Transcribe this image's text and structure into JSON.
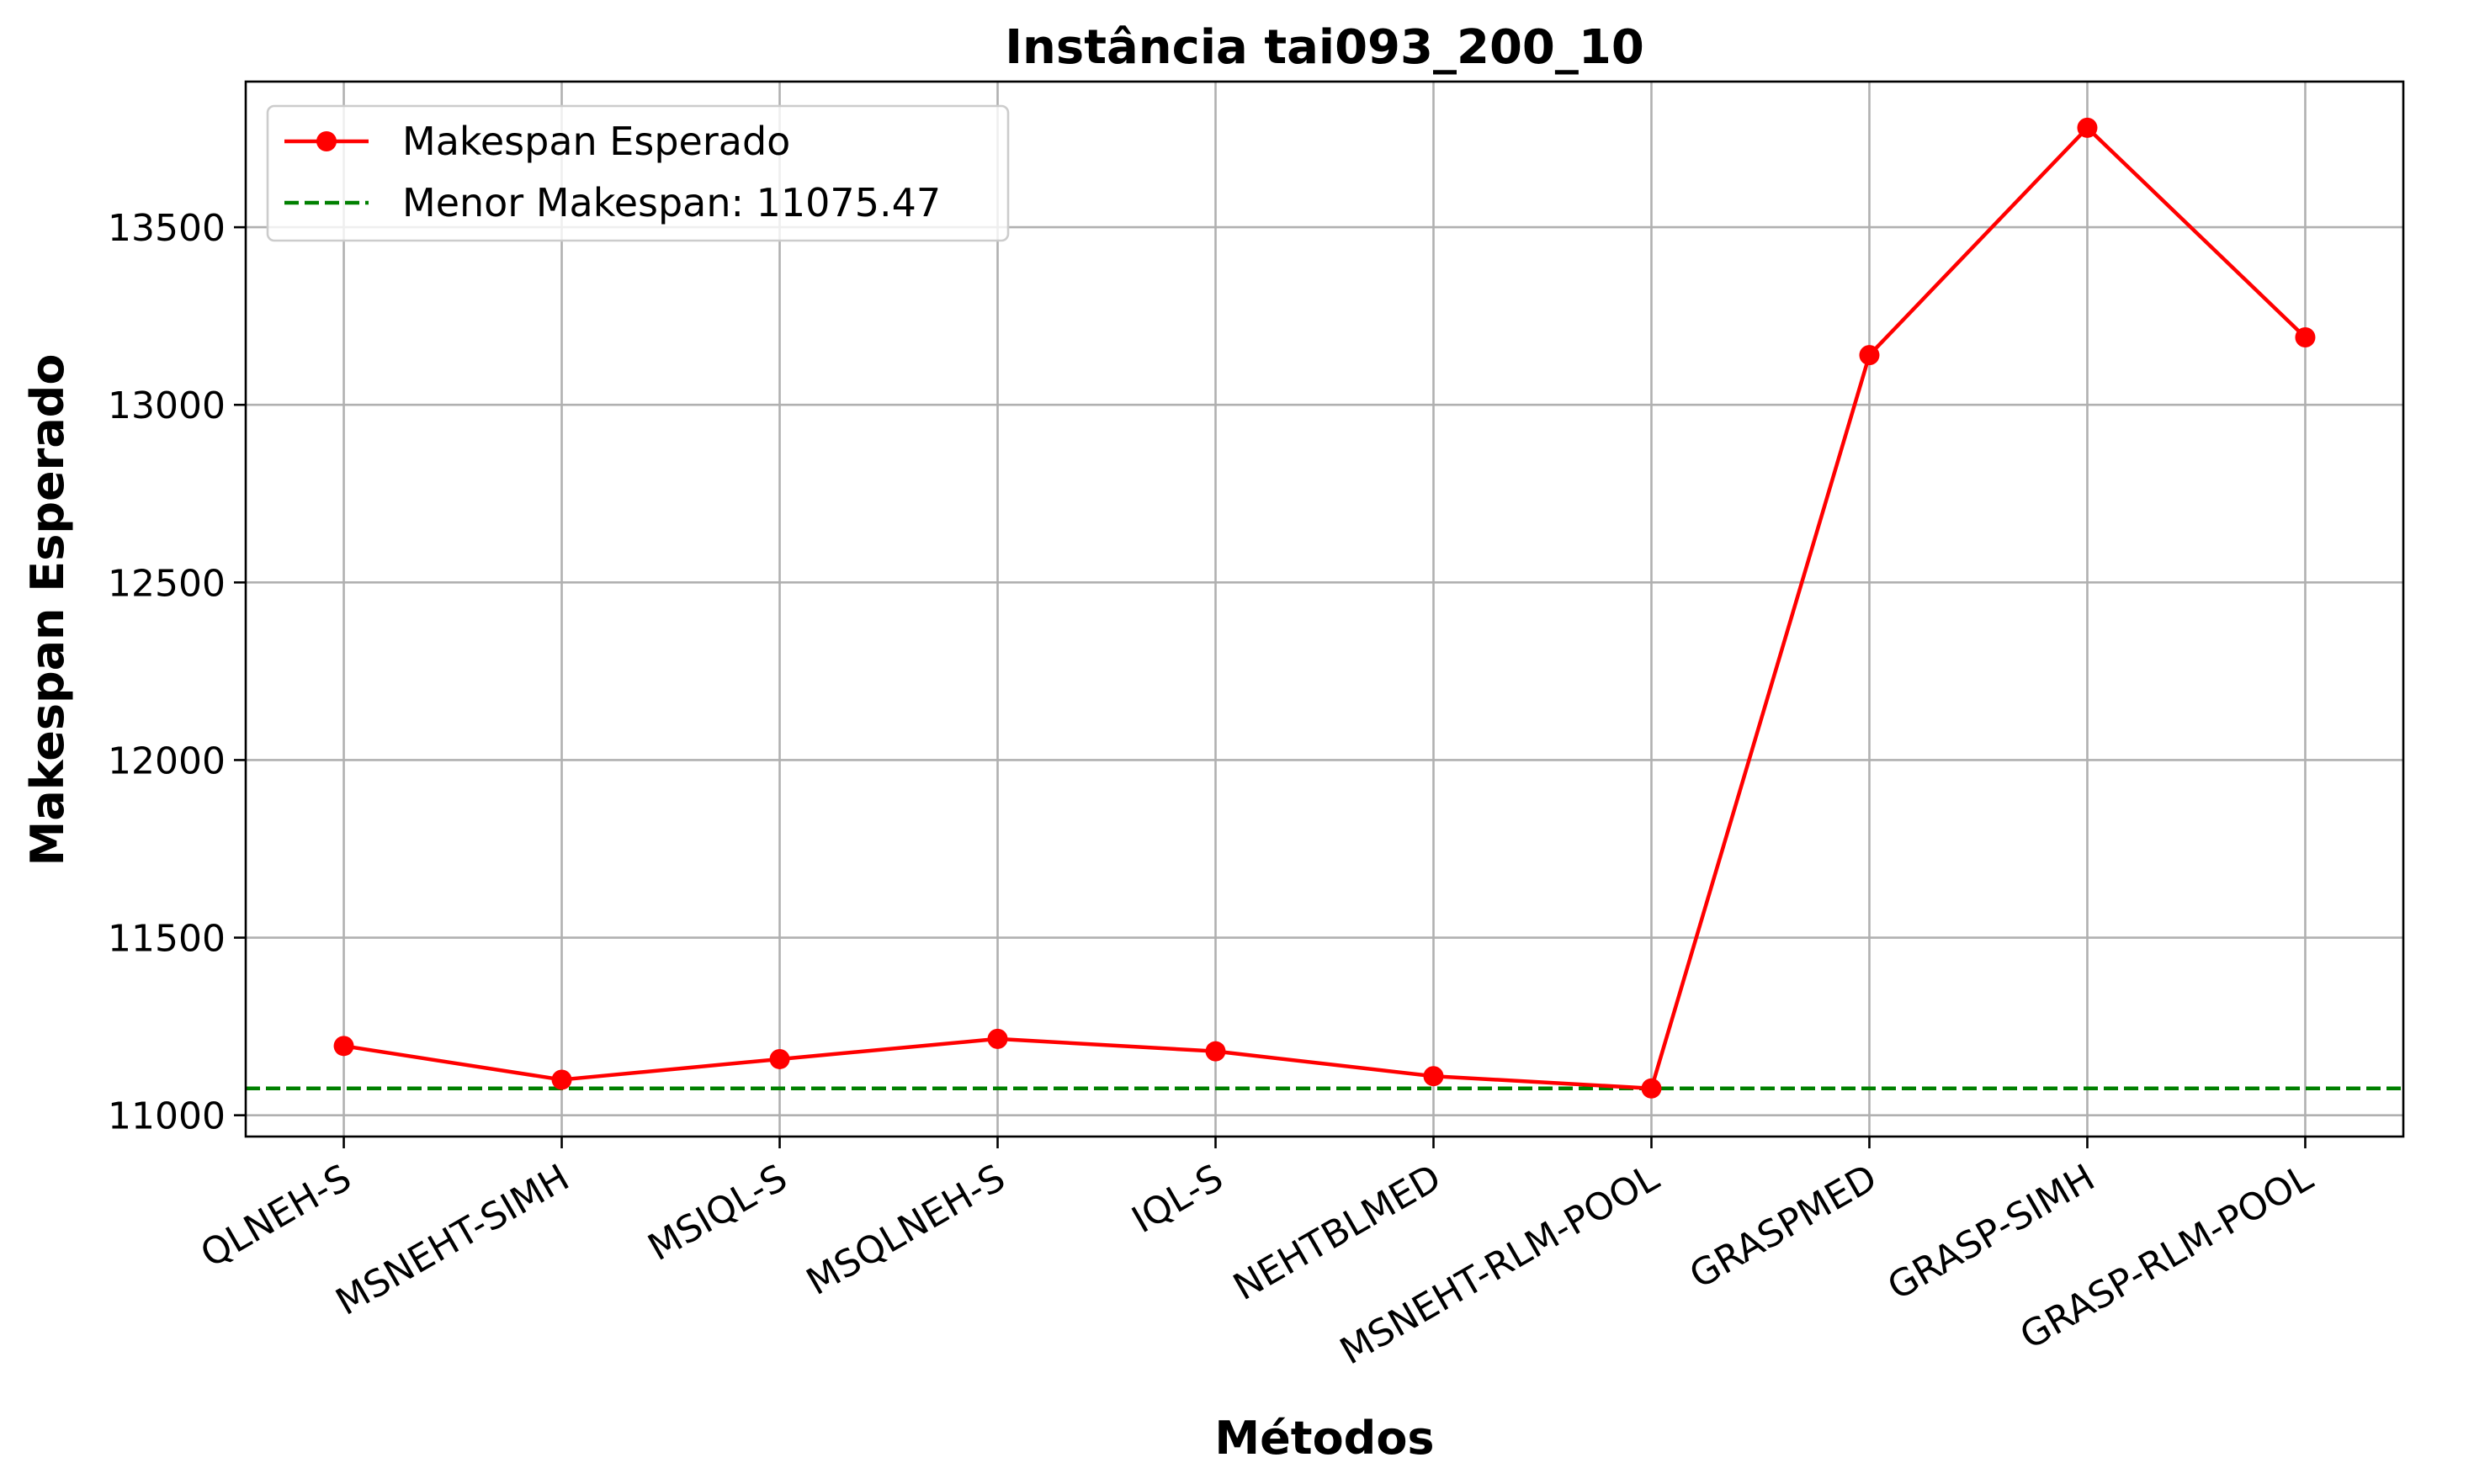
{
  "chart_data": {
    "type": "line",
    "title": "Instância tai093_200_10",
    "xlabel": "Métodos",
    "ylabel": "Makespan Esperado",
    "categories": [
      "QLNEH-S",
      "MSNEHT-SIMH",
      "MSIQL-S",
      "MSQLNEH-S",
      "IQL-S",
      "NEHTBLMED",
      "MSNEHT-RLM-POOL",
      "GRASPMED",
      "GRASP-SIMH",
      "GRASP-RLM-POOL"
    ],
    "series": [
      {
        "name": "Makespan Esperado",
        "values": [
          11195,
          11100,
          11158,
          11215,
          11180,
          11110,
          11075.47,
          13140,
          13780,
          13190
        ],
        "color": "#ff0000",
        "marker": "circle"
      }
    ],
    "reference_line": {
      "label": "Menor Makespan: 11075.47",
      "value": 11075.47,
      "color": "#008000",
      "style": "dashed"
    },
    "ylim": [
      10940,
      13910
    ],
    "yticks": [
      11000,
      11500,
      12000,
      12500,
      13000,
      13500
    ],
    "grid": true,
    "legend_position": "top-left"
  }
}
